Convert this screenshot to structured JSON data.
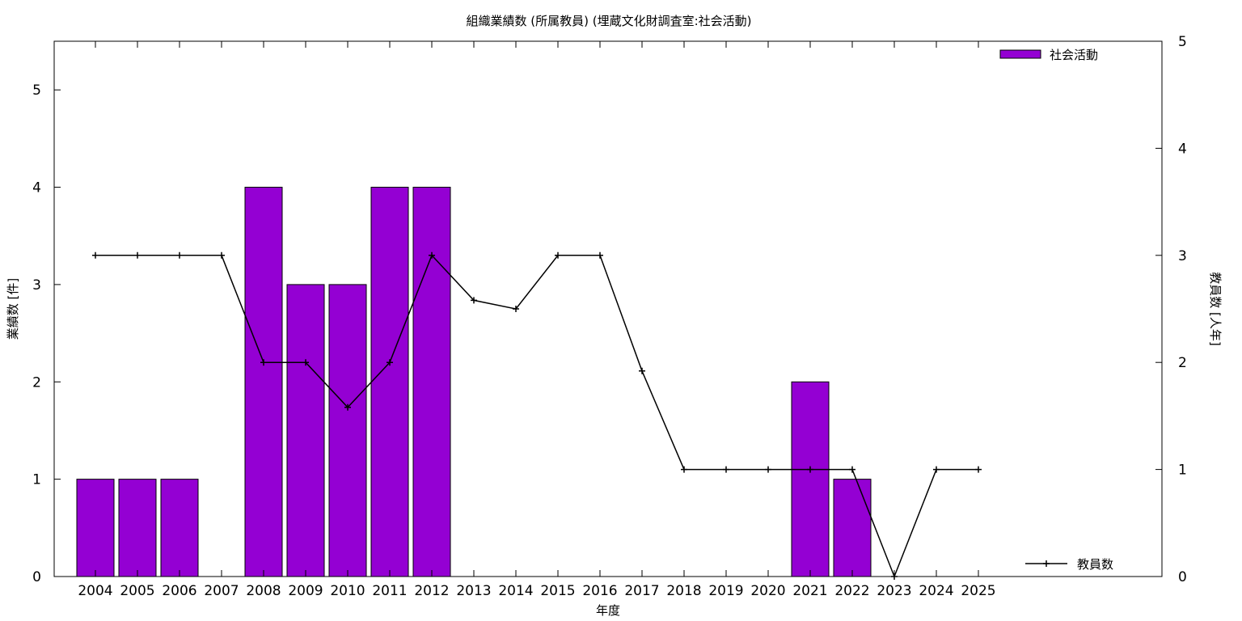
{
  "chart_data": {
    "type": "bar",
    "title": "組織業績数 (所属教員) (埋蔵文化財調査室:社会活動)",
    "xlabel": "年度",
    "ylabel": "業績数 [件]",
    "y2label": "教員数 [人年]",
    "categories": [
      "2004",
      "2005",
      "2006",
      "2007",
      "2008",
      "2009",
      "2010",
      "2011",
      "2012",
      "2013",
      "2014",
      "2015",
      "2016",
      "2017",
      "2018",
      "2019",
      "2020",
      "2021",
      "2022",
      "2023",
      "2024",
      "2025"
    ],
    "ylim": [
      0,
      5.5
    ],
    "y_ticks": [
      0,
      1,
      2,
      3,
      4,
      5
    ],
    "y2lim": [
      0,
      5
    ],
    "y2_ticks": [
      0,
      1,
      2,
      3,
      4,
      5
    ],
    "grid": false,
    "series": [
      {
        "name": "社会活動",
        "type": "bar",
        "axis": "left",
        "color": "#9400d3",
        "values": [
          1,
          1,
          1,
          0,
          4,
          3,
          3,
          4,
          4,
          0,
          0,
          0,
          0,
          0,
          0,
          0,
          0,
          2,
          1,
          0,
          0,
          0
        ]
      },
      {
        "name": "教員数",
        "type": "line",
        "axis": "right",
        "color": "#000000",
        "values": [
          3,
          3,
          3,
          3,
          2,
          2,
          1.58,
          2,
          3,
          2.58,
          2.5,
          3,
          3,
          1.92,
          1,
          1,
          1,
          1,
          1,
          0,
          1,
          1
        ]
      }
    ],
    "legend": [
      {
        "label": "社会活動",
        "position": "top-right"
      },
      {
        "label": "教員数",
        "position": "bottom-right"
      }
    ]
  }
}
